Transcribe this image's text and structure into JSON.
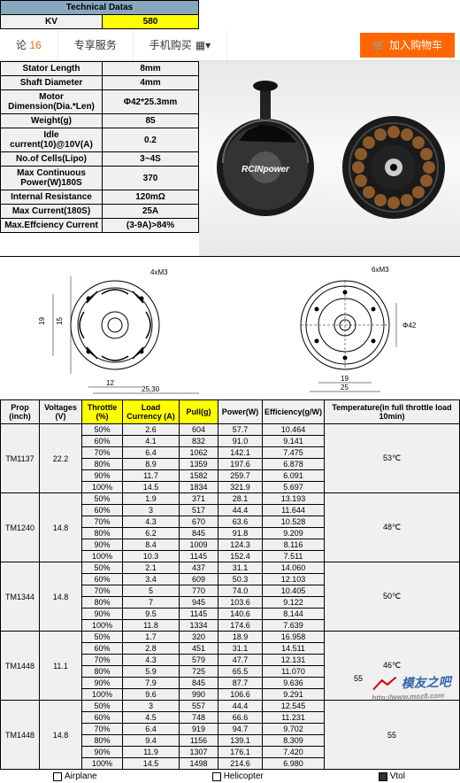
{
  "nav": {
    "comments_label": "论",
    "comments_count": "16",
    "exclusive": "专享服务",
    "mobile": "手机购买",
    "cart": "加入购物车"
  },
  "header": {
    "title": "Technical Datas"
  },
  "specs": [
    {
      "label": "KV",
      "value": "580",
      "highlight": true
    },
    {
      "label": "Stator Length",
      "value": "8mm"
    },
    {
      "label": "Shaft Diameter",
      "value": "4mm"
    },
    {
      "label": "Motor Dimension(Dia.*Len)",
      "value": "Φ42*25.3mm"
    },
    {
      "label": "Weight(g)",
      "value": "85"
    },
    {
      "label": "Idle current(10)@10V(A)",
      "value": "0.2"
    },
    {
      "label": "No.of Cells(Lipo)",
      "value": "3~4S"
    },
    {
      "label": "Max Continuous Power(W)180S",
      "value": "370"
    },
    {
      "label": "Internal Resistance",
      "value": "120mΩ"
    },
    {
      "label": "Max Current(180S)",
      "value": "25A"
    },
    {
      "label": "Max.Effciency Current",
      "value": "(3-9A)>84%"
    }
  ],
  "dims": {
    "d1": "4xM3",
    "d2": "25,30",
    "d3": "6xM3",
    "d4": "Φ42"
  },
  "perf": {
    "headers": [
      "Prop (inch)",
      "Voltages (V)",
      "Throttle (%)",
      "Load Currency (A)",
      "Pull(g)",
      "Power(W)",
      "Efficiency(g/W)",
      "Temperature(in full throttle load 10min)"
    ],
    "groups": [
      {
        "prop": "TM1137",
        "volt": "22.2",
        "temp": "53℃",
        "rows": [
          [
            "50%",
            "2.6",
            "604",
            "57.7",
            "10.464"
          ],
          [
            "60%",
            "4.1",
            "832",
            "91.0",
            "9.141"
          ],
          [
            "70%",
            "6.4",
            "1062",
            "142.1",
            "7.475"
          ],
          [
            "80%",
            "8.9",
            "1359",
            "197.6",
            "6.878"
          ],
          [
            "90%",
            "11.7",
            "1582",
            "259.7",
            "6.091"
          ],
          [
            "100%",
            "14.5",
            "1834",
            "321.9",
            "5.697"
          ]
        ]
      },
      {
        "prop": "TM1240",
        "volt": "14.8",
        "temp": "48℃",
        "rows": [
          [
            "50%",
            "1.9",
            "371",
            "28.1",
            "13.193"
          ],
          [
            "60%",
            "3",
            "517",
            "44.4",
            "11.644"
          ],
          [
            "70%",
            "4.3",
            "670",
            "63.6",
            "10.528"
          ],
          [
            "80%",
            "6.2",
            "845",
            "91.8",
            "9.209"
          ],
          [
            "90%",
            "8.4",
            "1009",
            "124.3",
            "8.116"
          ],
          [
            "100%",
            "10.3",
            "1145",
            "152.4",
            "7.511"
          ]
        ]
      },
      {
        "prop": "TM1344",
        "volt": "14.8",
        "temp": "50℃",
        "rows": [
          [
            "50%",
            "2.1",
            "437",
            "31.1",
            "14.060"
          ],
          [
            "60%",
            "3.4",
            "609",
            "50.3",
            "12.103"
          ],
          [
            "70%",
            "5",
            "770",
            "74.0",
            "10.405"
          ],
          [
            "80%",
            "7",
            "945",
            "103.6",
            "9.122"
          ],
          [
            "90%",
            "9.5",
            "1145",
            "140.6",
            "8.144"
          ],
          [
            "100%",
            "11.8",
            "1334",
            "174.6",
            "7.639"
          ]
        ]
      },
      {
        "prop": "TM1448",
        "volt": "11.1",
        "temp": "46℃",
        "rows": [
          [
            "50%",
            "1.7",
            "320",
            "18.9",
            "16.958"
          ],
          [
            "60%",
            "2.8",
            "451",
            "31.1",
            "14.511"
          ],
          [
            "70%",
            "4.3",
            "579",
            "47.7",
            "12.131"
          ],
          [
            "80%",
            "5.9",
            "725",
            "65.5",
            "11.070"
          ],
          [
            "90%",
            "7.9",
            "845",
            "87.7",
            "9.636"
          ],
          [
            "100%",
            "9.6",
            "990",
            "106.6",
            "9.291"
          ]
        ]
      },
      {
        "prop": "TM1448",
        "volt": "14.8",
        "temp": "55",
        "rows": [
          [
            "50%",
            "3",
            "557",
            "44.4",
            "12.545"
          ],
          [
            "60%",
            "4.5",
            "748",
            "66.6",
            "11.231"
          ],
          [
            "70%",
            "6.4",
            "919",
            "94.7",
            "9.702"
          ],
          [
            "80%",
            "9.4",
            "1156",
            "139.1",
            "8.309"
          ],
          [
            "90%",
            "11.9",
            "1307",
            "176.1",
            "7.420"
          ],
          [
            "100%",
            "14.5",
            "1498",
            "214.6",
            "6.980"
          ]
        ]
      }
    ]
  },
  "footer": {
    "opt1": "Airplane",
    "opt2": "Helicopter",
    "opt3": "Vtol"
  },
  "watermark": {
    "text": "模友之吧",
    "url": "http://www.moz8.com"
  },
  "colors": {
    "highlight": "#ffff00",
    "header_bg": "#88a8c0",
    "cell_bg": "#f0f0f0",
    "nav_btn": "#ff6600"
  }
}
